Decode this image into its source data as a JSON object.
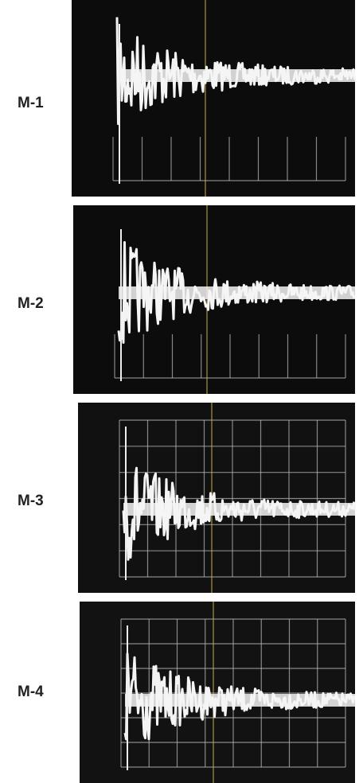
{
  "panels": [
    {
      "label": "M-1"
    },
    {
      "label": "M-2"
    },
    {
      "label": "M-3"
    },
    {
      "label": "M-4"
    }
  ]
}
